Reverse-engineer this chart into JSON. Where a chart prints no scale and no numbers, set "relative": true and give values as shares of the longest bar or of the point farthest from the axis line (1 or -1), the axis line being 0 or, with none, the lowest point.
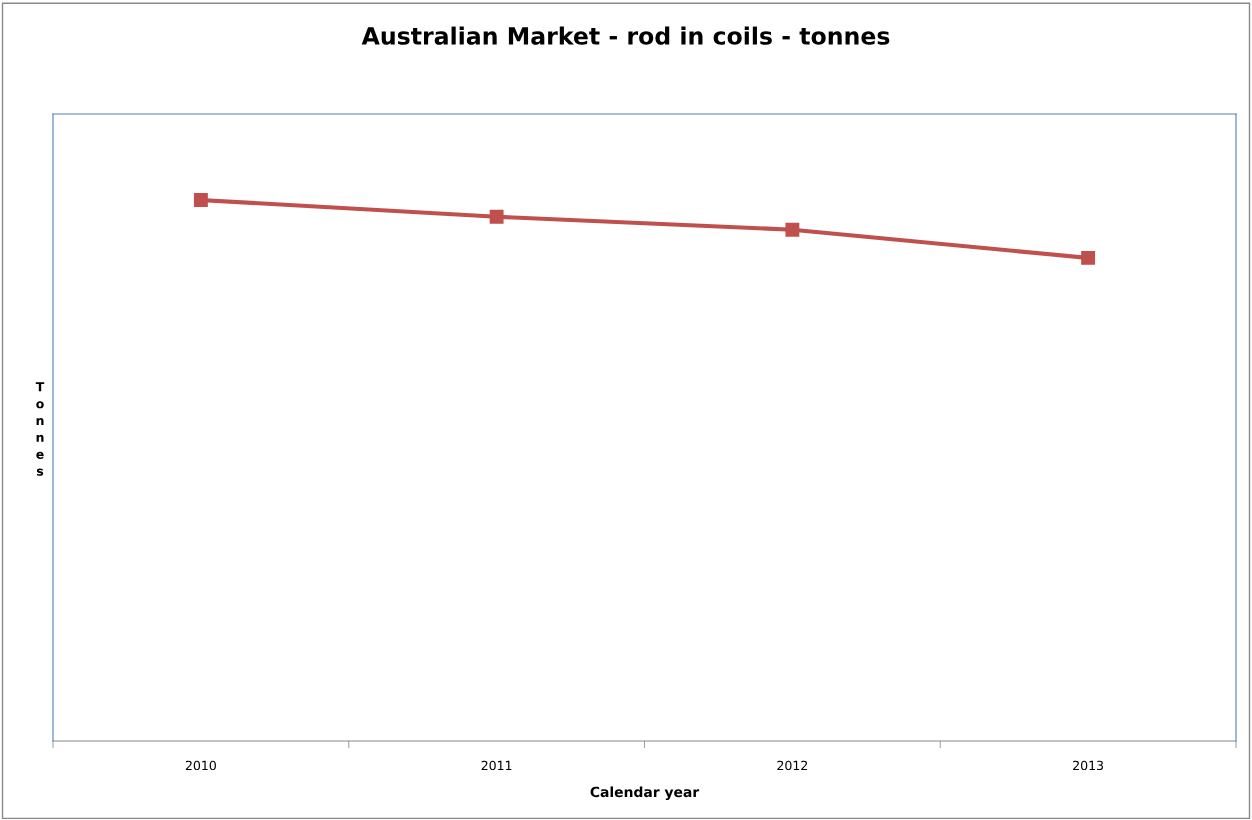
{
  "chart_data": {
    "type": "line",
    "title": "Australian Market - rod in coils - tonnes",
    "xlabel": "Calendar year",
    "ylabel": "Tonnes",
    "categories": [
      "2010",
      "2011",
      "2012",
      "2013"
    ],
    "series": [
      {
        "color": "#c0504d",
        "values": [
          1,
          0.969,
          0.945,
          0.893
        ]
      }
    ],
    "relative": true,
    "marker": "square",
    "line_style": "solid",
    "grid": false,
    "legend": false
  }
}
